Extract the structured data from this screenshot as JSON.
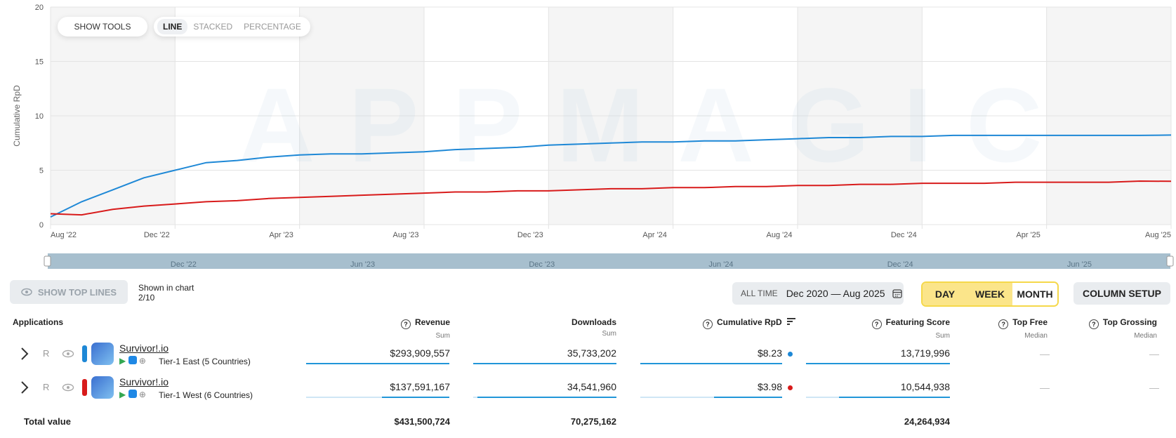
{
  "chart_data": {
    "type": "line",
    "ylabel": "Cumulative RpD",
    "ylim": [
      0,
      20
    ],
    "yticks": [
      "0",
      "5",
      "10",
      "15",
      "20"
    ],
    "x_tick_labels": [
      "Aug '22",
      "Dec '22",
      "Apr '23",
      "Aug '23",
      "Dec '23",
      "Apr '24",
      "Aug '24",
      "Dec '24",
      "Apr '25",
      "Aug '25"
    ],
    "x_months": [
      "2022-08",
      "2022-09",
      "2022-10",
      "2022-11",
      "2022-12",
      "2023-01",
      "2023-02",
      "2023-03",
      "2023-04",
      "2023-05",
      "2023-06",
      "2023-07",
      "2023-08",
      "2023-09",
      "2023-10",
      "2023-11",
      "2023-12",
      "2024-01",
      "2024-02",
      "2024-03",
      "2024-04",
      "2024-05",
      "2024-06",
      "2024-07",
      "2024-08",
      "2024-09",
      "2024-10",
      "2024-11",
      "2024-12",
      "2025-01",
      "2025-02",
      "2025-03",
      "2025-04",
      "2025-05",
      "2025-06",
      "2025-07",
      "2025-08"
    ],
    "series": [
      {
        "name": "Survivor!.io — Tier-1 East (5 Countries)",
        "color": "#1e88d6",
        "values": [
          0.7,
          2.1,
          3.2,
          4.3,
          5.0,
          5.7,
          5.9,
          6.2,
          6.4,
          6.5,
          6.5,
          6.6,
          6.7,
          6.9,
          7.0,
          7.1,
          7.3,
          7.4,
          7.5,
          7.6,
          7.6,
          7.7,
          7.7,
          7.8,
          7.9,
          8.0,
          8.0,
          8.1,
          8.1,
          8.2,
          8.2,
          8.2,
          8.2,
          8.2,
          8.2,
          8.2,
          8.23
        ]
      },
      {
        "name": "Survivor!.io — Tier-1 West (6 Countries)",
        "color": "#d81b1b",
        "values": [
          1.0,
          0.9,
          1.4,
          1.7,
          1.9,
          2.1,
          2.2,
          2.4,
          2.5,
          2.6,
          2.7,
          2.8,
          2.9,
          3.0,
          3.0,
          3.1,
          3.1,
          3.2,
          3.3,
          3.3,
          3.4,
          3.4,
          3.5,
          3.5,
          3.6,
          3.6,
          3.7,
          3.7,
          3.8,
          3.8,
          3.8,
          3.9,
          3.9,
          3.9,
          3.9,
          4.0,
          3.98
        ]
      }
    ],
    "navigator_labels": [
      "Dec '22",
      "Jun '23",
      "Dec '23",
      "Jun '24",
      "Dec '24",
      "Jun '25"
    ],
    "watermark": "APPMAGIC"
  },
  "toolbar": {
    "show_tools": "SHOW TOOLS",
    "modes": [
      "LINE",
      "STACKED",
      "PERCENTAGE"
    ]
  },
  "controls": {
    "show_top_lines": "SHOW TOP LINES",
    "shown_in_chart": "Shown in chart",
    "shown_count": "2/10",
    "all_time": "ALL TIME",
    "date_range": "Dec 2020 — Aug 2025",
    "granularity": [
      "DAY",
      "WEEK",
      "MONTH"
    ],
    "column_setup": "COLUMN SETUP"
  },
  "table": {
    "headers": {
      "applications": "Applications",
      "revenue": "Revenue",
      "revenue_sub": "Sum",
      "downloads": "Downloads",
      "downloads_sub": "Sum",
      "rpd": "Cumulative RpD",
      "featuring": "Featuring Score",
      "featuring_sub": "Sum",
      "top_free": "Top Free",
      "top_free_sub": "Median",
      "top_grossing": "Top Grossing",
      "top_grossing_sub": "Median"
    },
    "rows": [
      {
        "letter": "R",
        "name": "Survivor!.io",
        "tier": "Tier-1 East (5 Countries)",
        "color": "#1e88d6",
        "revenue": "$293,909,557",
        "downloads": "35,733,202",
        "rpd": "$8.23",
        "featuring": "13,719,996",
        "top_free": "—",
        "top_grossing": "—",
        "revenue_share": 1.0,
        "downloads_share": 1.0,
        "rpd_share": 1.0,
        "featuring_share": 1.0
      },
      {
        "letter": "R",
        "name": "Survivor!.io",
        "tier": "Tier-1 West (6 Countries)",
        "color": "#d81b1b",
        "revenue": "$137,591,167",
        "downloads": "34,541,960",
        "rpd": "$3.98",
        "featuring": "10,544,938",
        "top_free": "—",
        "top_grossing": "—",
        "revenue_share": 0.47,
        "downloads_share": 0.97,
        "rpd_share": 0.48,
        "featuring_share": 0.77
      }
    ],
    "total": {
      "label": "Total value",
      "revenue": "$431,500,724",
      "downloads": "70,275,162",
      "featuring": "24,264,934"
    }
  }
}
